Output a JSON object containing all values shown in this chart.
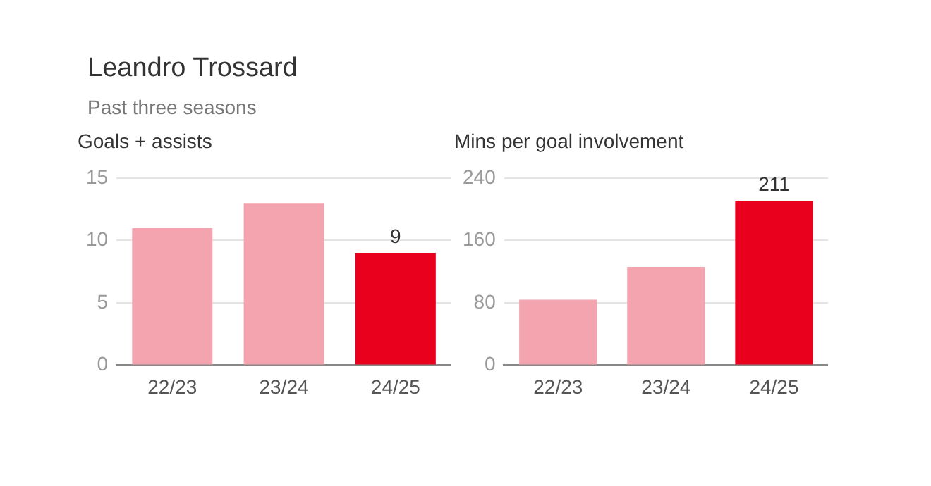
{
  "chart_data": [
    {
      "type": "bar",
      "title": "Leandro Trossard",
      "subtitle": "Past three seasons",
      "ylabel": "Goals + assists",
      "categories": [
        "22/23",
        "23/24",
        "24/25"
      ],
      "values": [
        11,
        13,
        9
      ],
      "colors": [
        "#f4a4ae",
        "#f4a4ae",
        "#e8001c"
      ],
      "value_labels": [
        null,
        null,
        "9"
      ],
      "ylim": [
        0,
        15
      ],
      "yticks": [
        0,
        5,
        10,
        15
      ],
      "grid": "y",
      "legend": false
    },
    {
      "type": "bar",
      "ylabel": "Mins per goal involvement",
      "categories": [
        "22/23",
        "23/24",
        "24/25"
      ],
      "values": [
        84,
        126,
        211
      ],
      "colors": [
        "#f4a4ae",
        "#f4a4ae",
        "#e8001c"
      ],
      "value_labels": [
        null,
        null,
        "211"
      ],
      "ylim": [
        0,
        240
      ],
      "yticks": [
        0,
        80,
        160,
        240
      ],
      "grid": "y",
      "legend": false
    }
  ]
}
